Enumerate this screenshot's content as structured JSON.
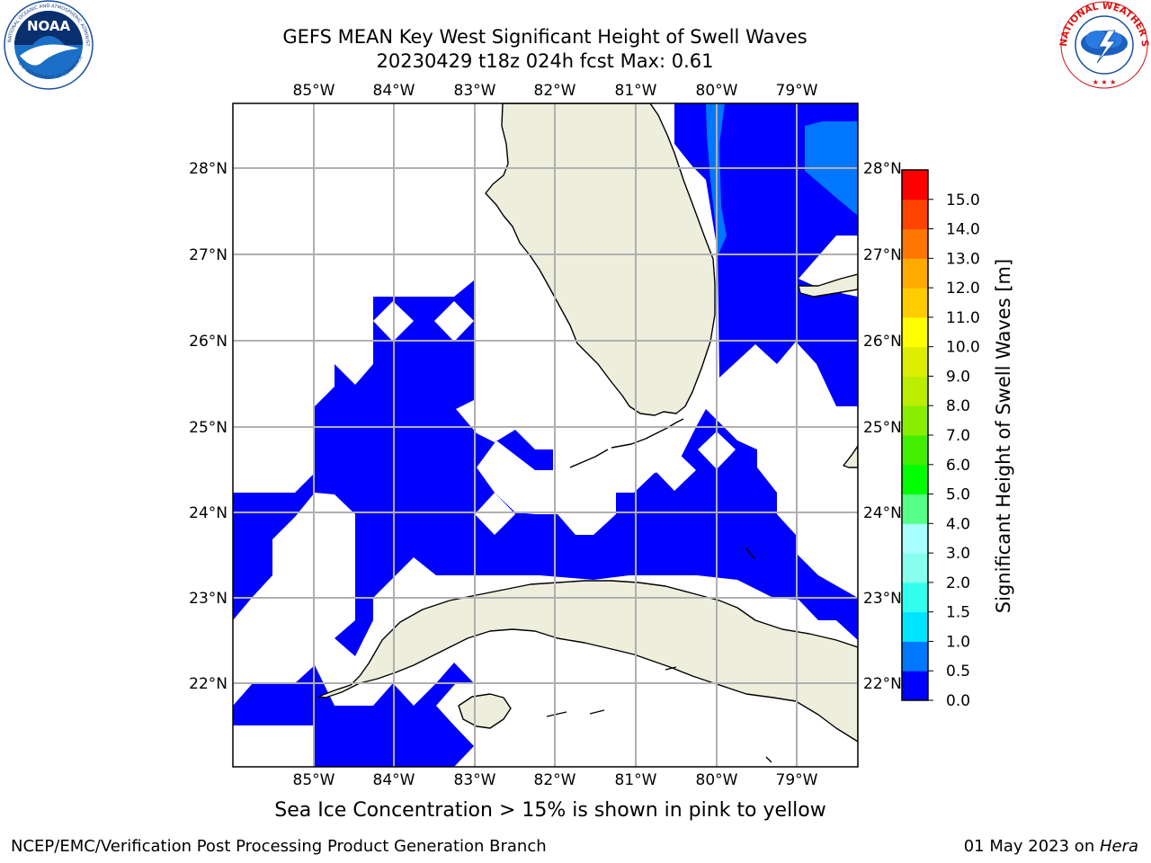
{
  "title": {
    "line1": "GEFS MEAN Key West Significant Height of Swell Waves",
    "line2": "20230429 t18z 024h fcst   Max: 0.61"
  },
  "logos": {
    "left_text": "NATIONAL OCEANIC AND ATMOSPHERIC ADMINISTRATION",
    "left_inner": "NOAA",
    "left_bottom": "U.S. DEPARTMENT OF COMMERCE",
    "right_text": "NATIONAL WEATHER SERVICE"
  },
  "map": {
    "lon_labels": [
      "85°W",
      "84°W",
      "83°W",
      "82°W",
      "81°W",
      "80°W",
      "79°W"
    ],
    "lat_labels": [
      "28°N",
      "27°N",
      "26°N",
      "25°N",
      "24°N",
      "23°N",
      "22°N"
    ],
    "extent": {
      "lon_min": -86.0,
      "lon_max": -78.25,
      "lat_min": 21.0,
      "lat_max": 28.75
    },
    "land_color": "#eeeedd",
    "ocean_color": "#ffffff"
  },
  "colorbar": {
    "label": "Significant Height of Swell Waves [m]",
    "ticks": [
      "0.0",
      "0.5",
      "1.0",
      "1.5",
      "2.0",
      "3.0",
      "4.0",
      "5.0",
      "6.0",
      "7.0",
      "8.0",
      "9.0",
      "10.0",
      "11.0",
      "12.0",
      "13.0",
      "14.0",
      "15.0"
    ],
    "colors": [
      "#0000ff",
      "#0077ff",
      "#00e5ff",
      "#33ffee",
      "#88ffee",
      "#aaffff",
      "#55ff88",
      "#00ff00",
      "#44ee00",
      "#88ee00",
      "#bbee00",
      "#ddee00",
      "#ffff00",
      "#ffcc00",
      "#ffaa00",
      "#ff7700",
      "#ff4400",
      "#ff0000"
    ]
  },
  "note": "Sea Ice Concentration > 15% is shown in pink to yellow",
  "footer": {
    "left": "NCEP/EMC/Verification Post Processing Product Generation Branch",
    "date": "01 May 2023 on ",
    "machine": "Hera"
  }
}
